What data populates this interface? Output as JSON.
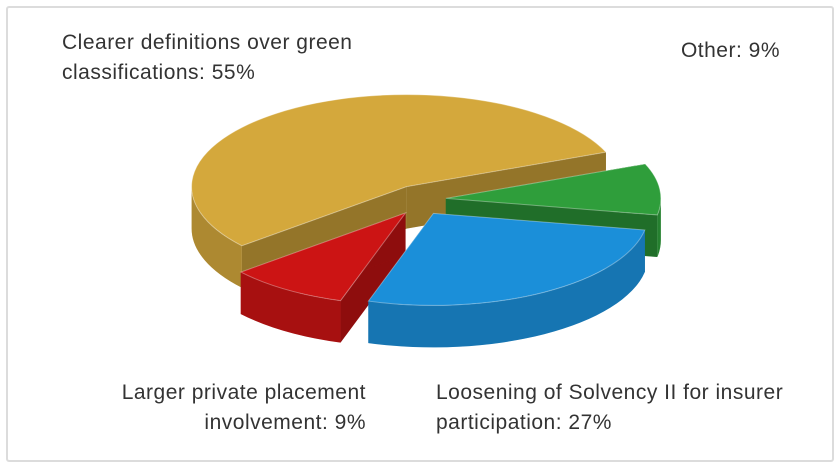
{
  "chart_data": {
    "type": "pie3d",
    "categories": [
      "Other: 9%",
      "Loosening of Solvency II for insurer participation: 27%",
      "Larger private placement involvement: 9%",
      "Clearer definitions over green classifications: 55%"
    ],
    "values": [
      9,
      27,
      9,
      55
    ],
    "colors": [
      "#2f9e3b",
      "#1b8fd9",
      "#cc1414",
      "#d4a83c"
    ]
  }
}
